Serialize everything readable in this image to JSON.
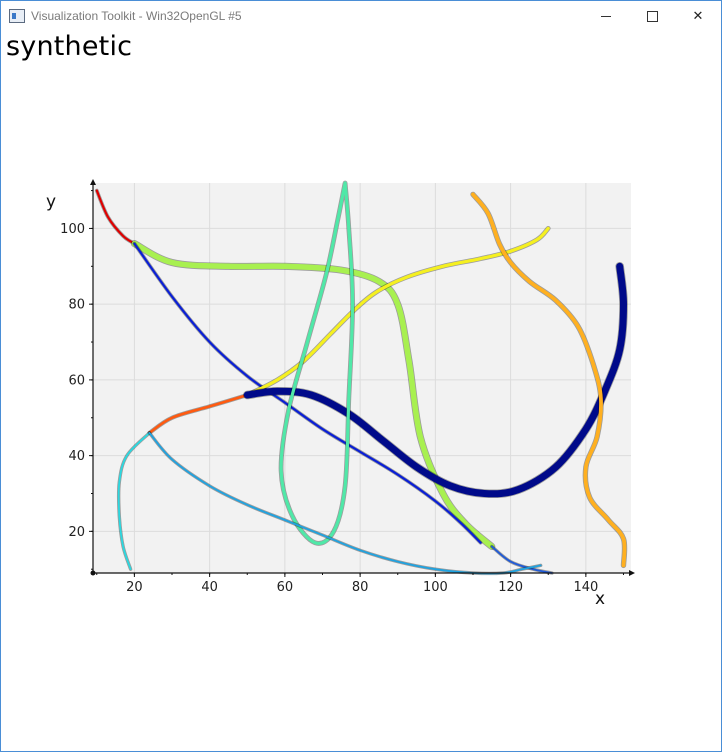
{
  "window": {
    "title": "Visualization Toolkit - Win32OpenGL #5",
    "minimize_icon": "minimize-icon",
    "maximize_icon": "maximize-icon",
    "close_icon": "close-icon"
  },
  "heading": "synthetic",
  "chart_data": {
    "type": "line",
    "xlabel": "x",
    "ylabel": "y",
    "xlim": [
      9,
      152
    ],
    "ylim": [
      9,
      112
    ],
    "xticks": [
      20,
      40,
      60,
      80,
      100,
      120,
      140
    ],
    "yticks": [
      20,
      40,
      60,
      80,
      100
    ],
    "grid": true,
    "plot_background": "#f2f2f2",
    "series": [
      {
        "color": "#e00000",
        "width": 2.2,
        "points": [
          [
            10,
            110
          ],
          [
            13,
            103
          ],
          [
            17,
            98
          ],
          [
            20,
            96
          ]
        ]
      },
      {
        "color": "#a8f050",
        "width": 5.5,
        "points": [
          [
            20,
            96
          ],
          [
            30,
            91
          ],
          [
            45,
            90
          ],
          [
            60,
            90
          ],
          [
            75,
            89
          ],
          [
            85,
            86
          ],
          [
            90,
            80
          ],
          [
            93,
            65
          ],
          [
            96,
            45
          ],
          [
            102,
            30
          ],
          [
            108,
            22
          ],
          [
            115,
            16
          ]
        ]
      },
      {
        "color": "#0a1fd6",
        "width": 2.2,
        "points": [
          [
            20,
            96
          ],
          [
            30,
            82
          ],
          [
            40,
            70
          ],
          [
            50,
            61
          ],
          [
            60,
            54
          ],
          [
            70,
            47
          ],
          [
            80,
            41
          ],
          [
            90,
            35
          ],
          [
            100,
            28
          ],
          [
            107,
            22
          ],
          [
            112,
            17
          ]
        ]
      },
      {
        "color": "#1f5ad8",
        "width": 1.8,
        "points": [
          [
            115,
            16
          ],
          [
            120,
            12
          ],
          [
            126,
            10
          ],
          [
            131,
            9
          ]
        ]
      },
      {
        "color": "#ff5a10",
        "width": 2.6,
        "points": [
          [
            24,
            46
          ],
          [
            30,
            50
          ],
          [
            40,
            53
          ],
          [
            50,
            56
          ]
        ]
      },
      {
        "color": "#f5f020",
        "width": 3.2,
        "points": [
          [
            50,
            56
          ],
          [
            58,
            60
          ],
          [
            65,
            65
          ],
          [
            72,
            72
          ],
          [
            78,
            78
          ],
          [
            84,
            83
          ],
          [
            92,
            87
          ],
          [
            102,
            90
          ],
          [
            112,
            92
          ],
          [
            120,
            94
          ],
          [
            127,
            97
          ],
          [
            130,
            100
          ]
        ]
      },
      {
        "color": "#000a8a",
        "width": 7,
        "points": [
          [
            50,
            56
          ],
          [
            58,
            57
          ],
          [
            67,
            56
          ],
          [
            77,
            51
          ],
          [
            86,
            44
          ],
          [
            95,
            37
          ],
          [
            104,
            32
          ],
          [
            113,
            30
          ],
          [
            122,
            31
          ],
          [
            132,
            37
          ],
          [
            140,
            47
          ],
          [
            145,
            57
          ],
          [
            149,
            68
          ],
          [
            150,
            80
          ],
          [
            149,
            90
          ]
        ]
      },
      {
        "color": "#50e8a8",
        "width": 3.2,
        "points": [
          [
            76,
            112
          ],
          [
            74,
            102
          ],
          [
            71,
            88
          ],
          [
            66,
            70
          ],
          [
            61,
            52
          ],
          [
            59,
            36
          ],
          [
            62,
            24
          ],
          [
            68,
            17
          ],
          [
            73,
            20
          ],
          [
            76,
            32
          ],
          [
            77,
            55
          ],
          [
            78,
            80
          ],
          [
            77,
            100
          ],
          [
            76,
            112
          ]
        ]
      },
      {
        "color": "#2ad8e0",
        "width": 1.8,
        "points": [
          [
            24,
            46
          ],
          [
            18,
            40
          ],
          [
            16,
            33
          ],
          [
            16,
            24
          ],
          [
            17,
            16
          ],
          [
            19,
            10
          ]
        ]
      },
      {
        "color": "#1fa2e0",
        "width": 1.8,
        "points": [
          [
            24,
            46
          ],
          [
            30,
            39
          ],
          [
            40,
            32
          ],
          [
            50,
            27
          ],
          [
            60,
            23
          ],
          [
            70,
            19
          ],
          [
            80,
            15
          ],
          [
            90,
            12
          ],
          [
            100,
            10
          ],
          [
            110,
            9
          ],
          [
            118,
            9
          ],
          [
            123,
            10
          ],
          [
            128,
            11
          ]
        ]
      },
      {
        "color": "#ffb020",
        "width": 3.8,
        "points": [
          [
            110,
            109
          ],
          [
            114,
            104
          ],
          [
            117,
            96
          ],
          [
            120,
            91
          ],
          [
            125,
            86
          ],
          [
            132,
            81
          ],
          [
            138,
            74
          ],
          [
            142,
            64
          ],
          [
            144,
            55
          ],
          [
            143,
            45
          ],
          [
            140,
            37
          ],
          [
            141,
            29
          ],
          [
            146,
            23
          ],
          [
            150,
            18
          ],
          [
            150,
            11
          ]
        ]
      }
    ]
  }
}
